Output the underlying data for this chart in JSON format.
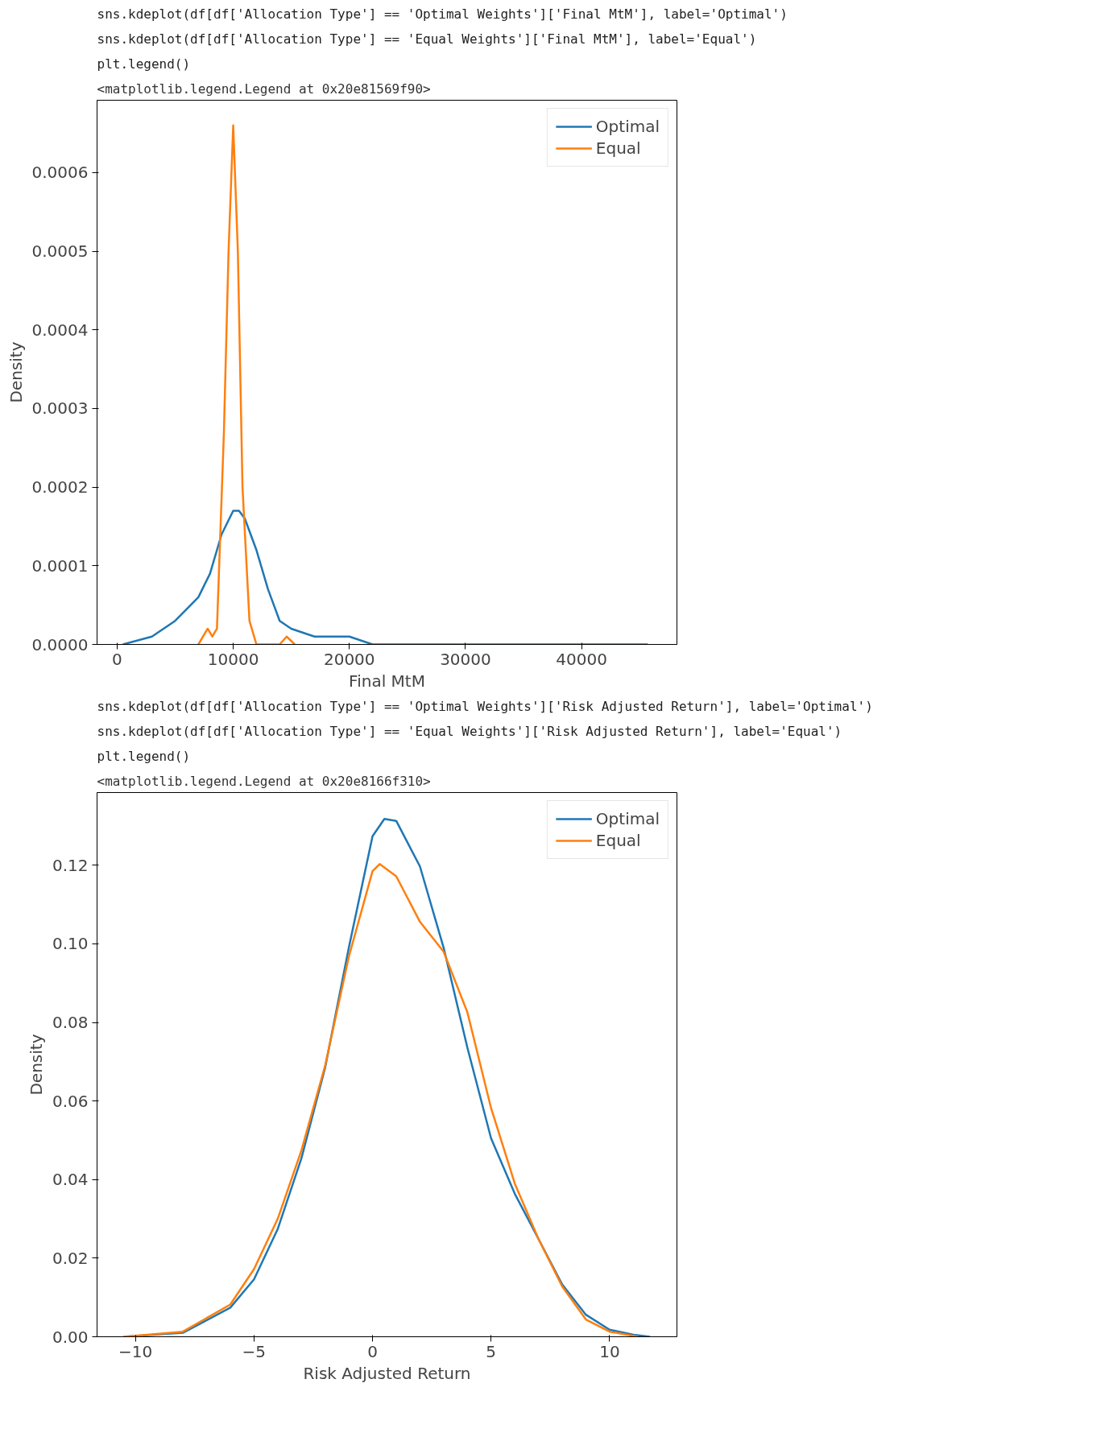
{
  "chart_data": [
    {
      "type": "line",
      "annotations": [
        "sns.kdeplot(df[df['Allocation Type'] == 'Optimal Weights']['Final MtM'], label='Optimal')",
        "sns.kdeplot(df[df['Allocation Type'] == 'Equal Weights']['Final MtM'], label='Equal')",
        "plt.legend()",
        "<matplotlib.legend.Legend at 0x20e81569f90>"
      ],
      "xlabel": "Final MtM",
      "ylabel": "Density",
      "xlim": [
        -1724,
        48207
      ],
      "ylim": [
        0,
        0.000692
      ],
      "xticks": [
        0,
        10000,
        20000,
        30000,
        40000
      ],
      "yticks": [
        {
          "value": 0,
          "label": "0.0000"
        },
        {
          "value": 0.0001,
          "label": "0.0001"
        },
        {
          "value": 0.0002,
          "label": "0.0002"
        },
        {
          "value": 0.0003,
          "label": "0.0003"
        },
        {
          "value": 0.0004,
          "label": "0.0004"
        },
        {
          "value": 0.0005,
          "label": "0.0005"
        },
        {
          "value": 0.0006,
          "label": "0.0006"
        }
      ],
      "legend": "top right",
      "grid": false,
      "series": [
        {
          "name": "Optimal",
          "color": "#1f77b4",
          "x": [
            500,
            3000,
            5000,
            7000,
            8000,
            9000,
            10000,
            10500,
            11000,
            12000,
            13000,
            14000,
            15000,
            17000,
            20000,
            22000,
            25000,
            30000,
            35000,
            40000,
            42000,
            44000,
            45700
          ],
          "values": [
            0,
            1e-05,
            3e-05,
            6e-05,
            9e-05,
            0.00014,
            0.00017,
            0.00017,
            0.00016,
            0.00012,
            7e-05,
            3e-05,
            2e-05,
            1e-05,
            1e-05,
            0,
            0,
            0,
            0,
            0,
            0,
            0,
            0
          ]
        },
        {
          "name": "Equal",
          "color": "#ff7f0e",
          "x": [
            7000,
            7800,
            8200,
            8600,
            9200,
            9600,
            10000,
            10400,
            10800,
            11400,
            12000,
            12600,
            14000,
            14600,
            15300
          ],
          "values": [
            0,
            2e-05,
            1e-05,
            2e-05,
            0.00027,
            0.0005,
            0.00066,
            0.0005,
            0.0002,
            3e-05,
            0,
            0,
            0,
            1e-05,
            0
          ]
        }
      ]
    },
    {
      "type": "line",
      "annotations": [
        "sns.kdeplot(df[df['Allocation Type'] == 'Optimal Weights']['Risk Adjusted Return'], label='Optimal')",
        "sns.kdeplot(df[df['Allocation Type'] == 'Equal Weights']['Risk Adjusted Return'], label='Equal')",
        "plt.legend()",
        "<matplotlib.legend.Legend at 0x20e8166f310>"
      ],
      "xlabel": "Risk Adjusted Return",
      "ylabel": "Density",
      "xlim": [
        -11.62,
        12.84
      ],
      "ylim": [
        0,
        0.1385
      ],
      "xticks": [
        {
          "value": -10,
          "label": "−10"
        },
        {
          "value": -5,
          "label": "−5"
        },
        0,
        5,
        10
      ],
      "yticks": [
        {
          "value": 0,
          "label": "0.00"
        },
        {
          "value": 0.02,
          "label": "0.02"
        },
        {
          "value": 0.04,
          "label": "0.04"
        },
        {
          "value": 0.06,
          "label": "0.06"
        },
        {
          "value": 0.08,
          "label": "0.08"
        },
        {
          "value": 0.1,
          "label": "0.10"
        },
        {
          "value": 0.12,
          "label": "0.12"
        }
      ],
      "legend": "top right",
      "grid": false,
      "series": [
        {
          "name": "Optimal",
          "color": "#1f77b4",
          "x": [
            -10.5,
            -8,
            -6,
            -5,
            -4,
            -3,
            -2,
            -1,
            0,
            0.5,
            1,
            2,
            3,
            4,
            5,
            6,
            7,
            8,
            9,
            10,
            11,
            11.7
          ],
          "values": [
            0,
            0.001,
            0.0074,
            0.0146,
            0.0274,
            0.0454,
            0.0685,
            0.099,
            0.1274,
            0.1318,
            0.1313,
            0.1197,
            0.099,
            0.0736,
            0.0505,
            0.0364,
            0.0249,
            0.0133,
            0.0056,
            0.0018,
            0.0005,
            0
          ]
        },
        {
          "name": "Equal",
          "color": "#ff7f0e",
          "x": [
            -10.5,
            -8,
            -6,
            -5,
            -4,
            -3,
            -2,
            -1,
            0,
            0.3,
            1,
            2,
            3,
            4,
            5,
            6,
            7,
            8,
            9,
            10,
            11.2
          ],
          "values": [
            0,
            0.0013,
            0.0082,
            0.0172,
            0.03,
            0.0474,
            0.069,
            0.0967,
            0.1185,
            0.1203,
            0.1172,
            0.1056,
            0.098,
            0.0826,
            0.0582,
            0.039,
            0.0249,
            0.0128,
            0.0044,
            0.0013,
            0
          ]
        }
      ]
    }
  ]
}
